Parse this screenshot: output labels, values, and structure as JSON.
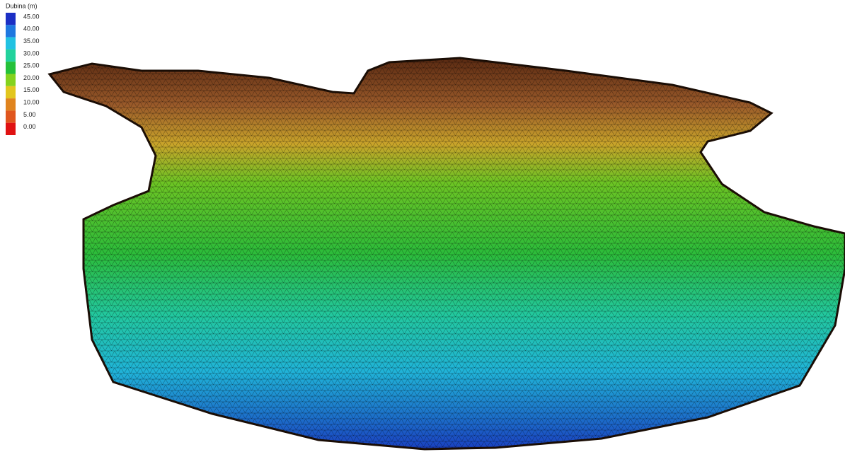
{
  "legend": {
    "title": "Dubina (m)",
    "items": [
      {
        "label": "45.00",
        "color": "#1c2fc4"
      },
      {
        "label": "40.00",
        "color": "#1f78e0"
      },
      {
        "label": "35.00",
        "color": "#22c2e2"
      },
      {
        "label": "30.00",
        "color": "#22d29c"
      },
      {
        "label": "25.00",
        "color": "#25c13a"
      },
      {
        "label": "20.00",
        "color": "#84d21e"
      },
      {
        "label": "15.00",
        "color": "#e2c61e"
      },
      {
        "label": "10.00",
        "color": "#e0841e"
      },
      {
        "label": "5.00",
        "color": "#e0561e"
      },
      {
        "label": "0.00",
        "color": "#e01212"
      }
    ]
  }
}
